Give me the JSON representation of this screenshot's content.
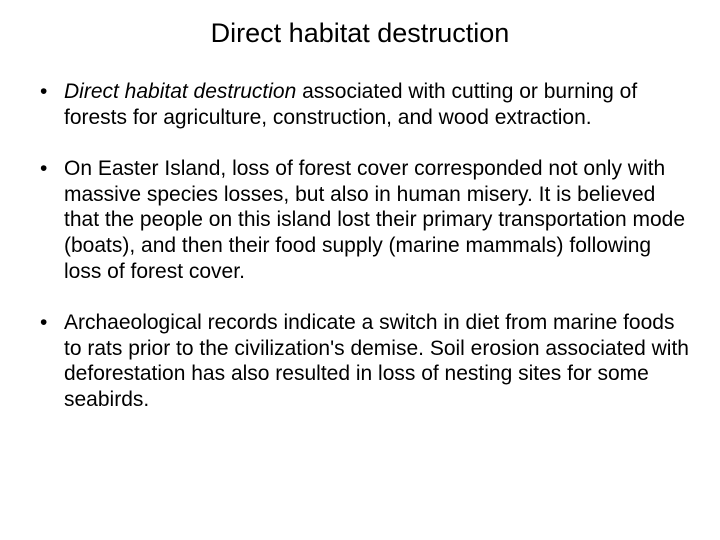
{
  "title": "Direct habitat destruction",
  "bullets": [
    {
      "italic_lead": "Direct habitat destruction",
      "rest": " associated with cutting or burning of forests for agriculture, construction, and wood extraction."
    },
    {
      "italic_lead": "",
      "rest": "On Easter Island, loss of forest cover corresponded not only with massive species losses, but also in human misery.  It is believed that the people on this island lost their primary transportation mode (boats), and then their food supply (marine mammals) following loss of forest cover."
    },
    {
      "italic_lead": "",
      "rest": "Archaeological records indicate a switch in diet from marine foods to rats prior to the civilization's demise.  Soil erosion associated with deforestation has also resulted in loss of nesting sites for some seabirds."
    }
  ],
  "colors": {
    "background": "#ffffff",
    "text": "#000000"
  },
  "typography": {
    "title_fontsize": 27,
    "body_fontsize": 21,
    "font_family": "Arial"
  }
}
